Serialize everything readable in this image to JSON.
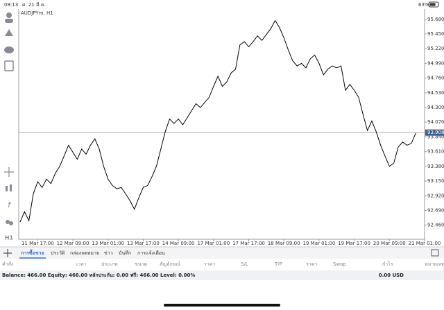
{
  "status_bar": {
    "time": "08:13",
    "date": "ศ. 21 มี.ค.",
    "battery": "63%"
  },
  "toolbar": {
    "function_label": "f",
    "timeframe": "H1"
  },
  "chart_data": {
    "type": "line",
    "symbol": "AUDJPYm, H1",
    "x": [
      0,
      1,
      2,
      3,
      4,
      5,
      6,
      7,
      8,
      9,
      10,
      11,
      12,
      13,
      14,
      15,
      16,
      17,
      18,
      19,
      20,
      21,
      22,
      23,
      24,
      25,
      26,
      27,
      28,
      29,
      30,
      31,
      32,
      33,
      34,
      35,
      36,
      37,
      38,
      39,
      40,
      41,
      42,
      43,
      44,
      45,
      46,
      47,
      48,
      49,
      50,
      51,
      52,
      53,
      54,
      55,
      56,
      57,
      58,
      59,
      60,
      61,
      62,
      63,
      64,
      65,
      66,
      67,
      68,
      69,
      70,
      71,
      72,
      73,
      74,
      75,
      76,
      77,
      78,
      79,
      80,
      81,
      82,
      83,
      84,
      85,
      86,
      87,
      88,
      89,
      90
    ],
    "series": [
      {
        "color": "#000000",
        "values": [
          92.51,
          92.67,
          92.53,
          92.95,
          93.14,
          93.05,
          93.18,
          93.11,
          93.27,
          93.38,
          93.54,
          93.71,
          93.6,
          93.49,
          93.65,
          93.57,
          93.71,
          93.81,
          93.65,
          93.38,
          93.18,
          93.08,
          93.03,
          93.05,
          92.95,
          92.84,
          92.71,
          92.89,
          93.05,
          93.08,
          93.22,
          93.38,
          93.65,
          93.92,
          94.12,
          94.05,
          94.12,
          94.03,
          94.14,
          94.25,
          94.36,
          94.3,
          94.38,
          94.46,
          94.63,
          94.79,
          94.63,
          94.7,
          94.84,
          94.9,
          95.28,
          95.33,
          95.25,
          95.33,
          95.42,
          95.35,
          95.44,
          95.53,
          95.66,
          95.55,
          95.39,
          95.2,
          95.03,
          94.95,
          94.99,
          94.92,
          95.06,
          95.12,
          94.99,
          94.81,
          94.9,
          94.95,
          94.92,
          94.95,
          94.57,
          94.66,
          94.57,
          94.46,
          94.19,
          93.94,
          94.09,
          93.92,
          93.71,
          93.54,
          93.38,
          93.43,
          93.68,
          93.76,
          93.71,
          93.74,
          93.9
        ]
      }
    ],
    "xlim": [
      0,
      92
    ],
    "xticks": [
      {
        "value": 4,
        "label": "11 Mar 17:00"
      },
      {
        "value": 12,
        "label": "12 Mar 09:00"
      },
      {
        "value": 20,
        "label": "13 Mar 01:00"
      },
      {
        "value": 28,
        "label": "13 Mar 17:00"
      },
      {
        "value": 36,
        "label": "14 Mar 09:00"
      },
      {
        "value": 44,
        "label": "17 Mar 01:00"
      },
      {
        "value": 52,
        "label": "17 Mar 17:00"
      },
      {
        "value": 60,
        "label": "18 Mar 09:00"
      },
      {
        "value": 68,
        "label": "19 Mar 01:00"
      },
      {
        "value": 76,
        "label": "19 Mar 17:00"
      },
      {
        "value": 84,
        "label": "20 Mar 09:00"
      },
      {
        "value": 92,
        "label": "21 Mar 01:00"
      }
    ],
    "ylim": [
      92.24,
      95.84
    ],
    "yticks": [
      {
        "value": 95.68,
        "label": "95.680"
      },
      {
        "value": 95.45,
        "label": "95.450"
      },
      {
        "value": 95.22,
        "label": "95.220"
      },
      {
        "value": 94.99,
        "label": "94.990"
      },
      {
        "value": 94.76,
        "label": "94.760"
      },
      {
        "value": 94.53,
        "label": "94.530"
      },
      {
        "value": 94.3,
        "label": "94.300"
      },
      {
        "value": 94.07,
        "label": "94.070"
      },
      {
        "value": 93.84,
        "label": "93.840"
      },
      {
        "value": 93.61,
        "label": "93.610"
      },
      {
        "value": 93.38,
        "label": "93.380"
      },
      {
        "value": 93.15,
        "label": "93.150"
      },
      {
        "value": 92.92,
        "label": "92.920"
      },
      {
        "value": 92.69,
        "label": "92.690"
      },
      {
        "value": 92.46,
        "label": "92.460"
      }
    ],
    "current_price": {
      "value": 93.908,
      "label": "93.908"
    }
  },
  "tabs": [
    "การซื้อขาย",
    "ประวัติ",
    "กล่องจดหมาย",
    "ข่าว",
    "บันทึก",
    "การแจ้งเตือน"
  ],
  "columns": [
    "คำสั่ง",
    "เวลา",
    "ประเภท",
    "ขนาด",
    "สัญลักษณ์",
    "ราคา",
    "S/L",
    "T/P",
    "ราคา",
    "Swap",
    "กำไร",
    "หมายเหตุ"
  ],
  "account": {
    "summary": "Balance: 466.00 Equity: 466.00 หลักประกัน: 0.00 ฟรี: 466.00 Level: 0.00%",
    "profit": "0.00 USD"
  }
}
